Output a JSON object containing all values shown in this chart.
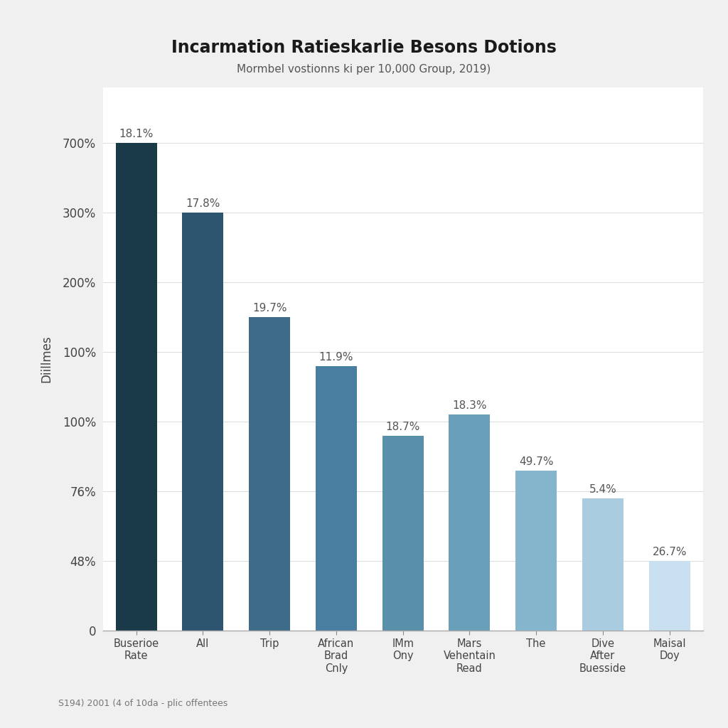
{
  "title": "Incarmation Ratieskarlie Besons Dotions",
  "subtitle": "Mormbel vostionns ki per 10,000 Group, 2019)",
  "ylabel": "Diillmes",
  "footnote": "S194) 2001 (4 of 10da - plic offentees",
  "categories": [
    "Buserioe\nRate",
    "All",
    "Trip",
    "African\nBrad\nCnly",
    "IMm\nOny",
    "Mars\nVehentain\nRead",
    "The",
    "Dive\nAfter\nBuesside",
    "Maisal\nDoy"
  ],
  "values": [
    7,
    6,
    4.5,
    3.8,
    2.8,
    3.1,
    2.3,
    1.9,
    1.0
  ],
  "bar_labels": [
    "18.1%",
    "17.8%",
    "19.7%",
    "11.9%",
    "18.7%",
    "18.3%",
    "49.7%",
    "5.4%",
    "26.7%"
  ],
  "bar_colors": [
    "#1a3a4a",
    "#2d5570",
    "#3d6b88",
    "#4a7ea0",
    "#5a8faa",
    "#6a9fba",
    "#85b5cc",
    "#aacce0",
    "#c8e0ef"
  ],
  "ytick_positions": [
    0,
    1,
    2,
    3,
    4,
    5,
    6,
    7
  ],
  "ytick_labels": [
    "0",
    "48%",
    "76%",
    "100%",
    "100%",
    "200%",
    "300%",
    "700%"
  ],
  "ylim_max": 7.8,
  "background_color": "#f0f0f0",
  "plot_background": "#ffffff"
}
